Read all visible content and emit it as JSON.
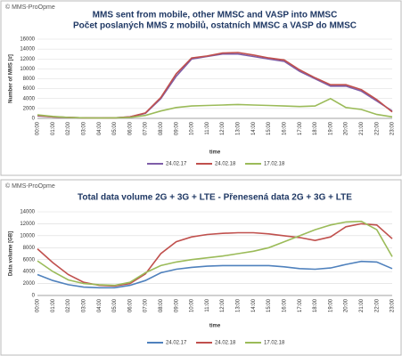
{
  "chart_data": [
    {
      "type": "line",
      "watermark": "© MMS-ProOpme",
      "title": "MMS sent from mobile, other MMSC and VASP into MMSC",
      "subtitle": "Počet poslaných MMS z mobilů, ostatních MMSC a VASP do MMSC",
      "x_label": "time",
      "y_label": "Number of MMS [#]",
      "categories": [
        "00:00",
        "01:00",
        "02:00",
        "03:00",
        "04:00",
        "05:00",
        "06:00",
        "07:00",
        "08:00",
        "09:00",
        "10:00",
        "11:00",
        "12:00",
        "13:00",
        "14:00",
        "15:00",
        "16:00",
        "17:00",
        "18:00",
        "19:00",
        "20:00",
        "21:00",
        "22:00",
        "23:00"
      ],
      "ylim": [
        0,
        16000
      ],
      "yticks": [
        0,
        2000,
        4000,
        6000,
        8000,
        10000,
        12000,
        14000,
        16000
      ],
      "grid": true,
      "series": [
        {
          "name": "24.02.17",
          "color": "#7e5ea8",
          "values": [
            500,
            300,
            200,
            100,
            80,
            100,
            300,
            1000,
            4000,
            8500,
            12000,
            12500,
            13000,
            13000,
            12500,
            12000,
            11500,
            9500,
            8000,
            6500,
            6500,
            5500,
            3500,
            1500
          ]
        },
        {
          "name": "24.02.18",
          "color": "#c0504d",
          "values": [
            600,
            300,
            200,
            100,
            80,
            100,
            300,
            1100,
            4200,
            9000,
            12200,
            12600,
            13200,
            13300,
            12800,
            12200,
            11800,
            9800,
            8200,
            6800,
            6800,
            5800,
            3800,
            1300
          ]
        },
        {
          "name": "17.02.18",
          "color": "#9bbb59",
          "values": [
            700,
            400,
            200,
            100,
            80,
            100,
            200,
            600,
            1500,
            2200,
            2500,
            2600,
            2700,
            2800,
            2700,
            2600,
            2500,
            2400,
            2500,
            4000,
            2200,
            1800,
            800,
            300
          ]
        }
      ]
    },
    {
      "type": "line",
      "watermark": "© MMS-ProOpme",
      "title": "Total data volume 2G + 3G + LTE - Přenesená data 2G + 3G + LTE",
      "x_label": "time",
      "y_label": "Data volume [GB]",
      "categories": [
        "00:00",
        "01:00",
        "02:00",
        "03:00",
        "04:00",
        "05:00",
        "06:00",
        "07:00",
        "08:00",
        "09:00",
        "10:00",
        "11:00",
        "12:00",
        "13:00",
        "14:00",
        "15:00",
        "16:00",
        "17:00",
        "18:00",
        "19:00",
        "20:00",
        "21:00",
        "22:00",
        "23:00"
      ],
      "ylim": [
        0,
        14000
      ],
      "yticks": [
        0,
        2000,
        4000,
        6000,
        8000,
        10000,
        12000,
        14000
      ],
      "grid": true,
      "series": [
        {
          "name": "24.02.17",
          "color": "#4f81bd",
          "values": [
            3500,
            2500,
            1800,
            1400,
            1300,
            1300,
            1700,
            2500,
            3800,
            4400,
            4700,
            4900,
            5000,
            5000,
            5000,
            5000,
            4800,
            4500,
            4400,
            4600,
            5200,
            5700,
            5600,
            4500
          ]
        },
        {
          "name": "24.02.18",
          "color": "#c0504d",
          "values": [
            7800,
            5500,
            3500,
            2200,
            1700,
            1600,
            2000,
            3600,
            7000,
            9000,
            9800,
            10200,
            10400,
            10500,
            10500,
            10300,
            10000,
            9700,
            9200,
            9800,
            11500,
            12000,
            11800,
            9500
          ]
        },
        {
          "name": "17.02.18",
          "color": "#9bbb59",
          "values": [
            5800,
            4000,
            2600,
            2000,
            1800,
            1700,
            2200,
            3800,
            5000,
            5600,
            6000,
            6300,
            6600,
            7000,
            7400,
            8000,
            9000,
            10000,
            11000,
            11800,
            12300,
            12400,
            11000,
            6500
          ]
        }
      ]
    }
  ]
}
